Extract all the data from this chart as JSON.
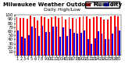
{
  "title": "Milwaukee Weather Outdoor Humidity",
  "subtitle": "Daily High/Low",
  "high_values": [
    95,
    93,
    93,
    90,
    99,
    95,
    87,
    97,
    95,
    90,
    95,
    96,
    93,
    96,
    89,
    94,
    93,
    91,
    95,
    96,
    97,
    90,
    95,
    97,
    94,
    89,
    88,
    97,
    99,
    97
  ],
  "low_values": [
    62,
    47,
    42,
    50,
    72,
    68,
    48,
    73,
    59,
    58,
    72,
    71,
    46,
    70,
    49,
    65,
    56,
    55,
    57,
    62,
    40,
    30,
    42,
    60,
    55,
    40,
    40,
    55,
    72,
    62
  ],
  "ylim": [
    0,
    100
  ],
  "yticks": [
    10,
    20,
    30,
    40,
    50,
    60,
    70,
    80,
    90,
    100
  ],
  "high_color": "#ff0000",
  "low_color": "#0000ff",
  "bg_color": "#ffffff",
  "plot_bg": "#ffffff",
  "legend_high": "High",
  "legend_low": "Low",
  "bar_width": 0.4,
  "xlabel_fontsize": 4,
  "ylabel_fontsize": 4,
  "title_fontsize": 5
}
